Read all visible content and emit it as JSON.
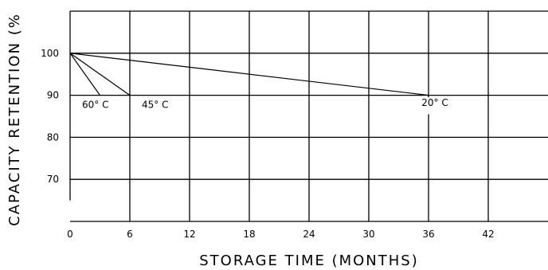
{
  "chart_data": {
    "type": "line",
    "title": "",
    "xlabel": "STORAGE TIME (MONTHS)",
    "ylabel": "CAPACITY RETENTION (%",
    "xlim": [
      0,
      48
    ],
    "ylim": [
      60,
      110
    ],
    "x_ticks": [
      0,
      6,
      12,
      18,
      24,
      30,
      36,
      42
    ],
    "x_tick_labels": [
      "0",
      "6",
      "12",
      "18",
      "24",
      "30",
      "36",
      "42"
    ],
    "y_ticks": [
      70,
      80,
      90,
      100
    ],
    "y_tick_labels": [
      "70",
      "80",
      "90",
      "100"
    ],
    "grid": true,
    "legend": "none",
    "series": [
      {
        "name": "60° C",
        "x": [
          0,
          3
        ],
        "y": [
          100,
          90
        ]
      },
      {
        "name": "45° C",
        "x": [
          0,
          6
        ],
        "y": [
          100,
          90
        ]
      },
      {
        "name": "20° C",
        "x": [
          0,
          36
        ],
        "y": [
          100,
          90
        ]
      }
    ],
    "annotations": [
      {
        "text": "60° C",
        "x": 1.2,
        "y": 87
      },
      {
        "text": "45° C",
        "x": 7.2,
        "y": 87
      },
      {
        "text": "20° C",
        "x": 35.3,
        "y": 87.5
      }
    ]
  }
}
